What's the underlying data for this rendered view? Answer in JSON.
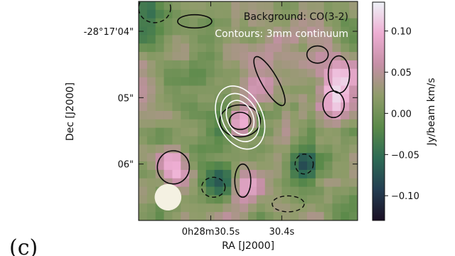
{
  "chart_data": {
    "type": "heatmap",
    "panel_label": "(c)",
    "annotations": {
      "background": "Background: CO(3-2)",
      "contours": "Contours: 3mm continuum"
    },
    "xlabel": "RA [J2000]",
    "ylabel": "Dec [J2000]",
    "x_ticks": [
      {
        "label": "0h28m30.5s",
        "offset_arcsec": -0.55
      },
      {
        "label": "30.4s",
        "offset_arcsec": 0.78
      }
    ],
    "y_ticks": [
      {
        "label": "-28°17'04\"",
        "dec_arcsec": 4.0
      },
      {
        "label": "05\"",
        "dec_arcsec": 5.0
      },
      {
        "label": "06\"",
        "dec_arcsec": 6.0
      }
    ],
    "field_arcsec": {
      "x": [
        -1.9,
        2.2
      ],
      "dec": [
        3.55,
        6.85
      ]
    },
    "colorbar": {
      "label": "Jy/beam km/s",
      "range": [
        -0.13,
        0.135
      ],
      "ticks": [
        {
          "label": "0.10",
          "value": 0.1
        },
        {
          "label": "0.05",
          "value": 0.05
        },
        {
          "label": "0.00",
          "value": 0.0
        },
        {
          "label": "−0.05",
          "value": -0.05
        },
        {
          "label": "−0.10",
          "value": -0.1
        }
      ],
      "colormap": [
        "#1a0f24",
        "#243e52",
        "#2e6b54",
        "#5b8a4a",
        "#8f9c6a",
        "#c58fa6",
        "#eeaed3",
        "#eef2f7"
      ]
    },
    "background_map": {
      "mean": 0.02,
      "noise_amplitude": 0.06,
      "sources": [
        {
          "name": "central-peak",
          "x": 0.0,
          "dec": 5.35,
          "peak": 0.14,
          "sigma": 0.18
        },
        {
          "name": "central-ring",
          "x": 0.0,
          "dec": 5.35,
          "peak": -0.07,
          "sigma": 0.4
        },
        {
          "name": "pink-lobe",
          "x": 0.35,
          "dec": 4.8,
          "peak": 0.06,
          "sigma": 0.3
        },
        {
          "name": "left-clump",
          "x": -1.25,
          "dec": 6.05,
          "peak": 0.08,
          "sigma": 0.2
        },
        {
          "name": "lower-right-clump",
          "x": 0.05,
          "dec": 6.25,
          "peak": 0.07,
          "sigma": 0.2
        },
        {
          "name": "upper-right-clump",
          "x": 1.85,
          "dec": 4.65,
          "peak": 0.08,
          "sigma": 0.22
        },
        {
          "name": "right-clump",
          "x": 1.75,
          "dec": 5.1,
          "peak": 0.07,
          "sigma": 0.2
        },
        {
          "name": "hole-lower-left",
          "x": -0.35,
          "dec": 6.3,
          "peak": -0.1,
          "sigma": 0.2
        },
        {
          "name": "hole-lower-right",
          "x": 1.2,
          "dec": 6.0,
          "peak": -0.1,
          "sigma": 0.2
        },
        {
          "name": "hole-upper-left",
          "x": -1.7,
          "dec": 3.75,
          "peak": -0.08,
          "sigma": 0.25
        }
      ]
    },
    "co_contours_positive": [
      {
        "x": 0.0,
        "dec": 5.35,
        "rx": 0.38,
        "ry": 0.24,
        "angle": 0
      },
      {
        "x": 0.0,
        "dec": 5.35,
        "rx": 0.2,
        "ry": 0.13,
        "angle": 0
      },
      {
        "x": -1.25,
        "dec": 6.05,
        "rx": 0.3,
        "ry": 0.25,
        "angle": 0
      },
      {
        "x": 0.05,
        "dec": 6.25,
        "rx": 0.15,
        "ry": 0.25,
        "angle": 0
      },
      {
        "x": 0.55,
        "dec": 4.75,
        "rx": 0.15,
        "ry": 0.42,
        "angle": -30
      },
      {
        "x": 1.85,
        "dec": 4.65,
        "rx": 0.2,
        "ry": 0.28,
        "angle": 0
      },
      {
        "x": 1.75,
        "dec": 5.1,
        "rx": 0.2,
        "ry": 0.2,
        "angle": 0
      },
      {
        "x": 1.45,
        "dec": 4.35,
        "rx": 0.2,
        "ry": 0.13,
        "angle": 0
      },
      {
        "x": -0.85,
        "dec": 3.85,
        "rx": 0.32,
        "ry": 0.1,
        "angle": 0
      }
    ],
    "co_contours_negative": [
      {
        "x": -1.6,
        "dec": 3.65,
        "rx": 0.3,
        "ry": 0.22,
        "angle": 0
      },
      {
        "x": -0.5,
        "dec": 6.35,
        "rx": 0.22,
        "ry": 0.15,
        "angle": 0
      },
      {
        "x": 1.2,
        "dec": 6.0,
        "rx": 0.17,
        "ry": 0.15,
        "angle": 0
      },
      {
        "x": 0.9,
        "dec": 6.6,
        "rx": 0.3,
        "ry": 0.12,
        "angle": 0
      }
    ],
    "continuum_contours": [
      {
        "x": 0.0,
        "dec": 5.3,
        "rx": 0.42,
        "ry": 0.5,
        "angle": -25
      },
      {
        "x": 0.0,
        "dec": 5.3,
        "rx": 0.33,
        "ry": 0.38,
        "angle": -25
      },
      {
        "x": 0.0,
        "dec": 5.3,
        "rx": 0.24,
        "ry": 0.27,
        "angle": -25
      }
    ],
    "beam": {
      "x": -1.35,
      "dec": 6.5,
      "major_arcsec": 0.5,
      "minor_arcsec": 0.4,
      "angle": 15,
      "color": "#f4f1e2"
    }
  }
}
